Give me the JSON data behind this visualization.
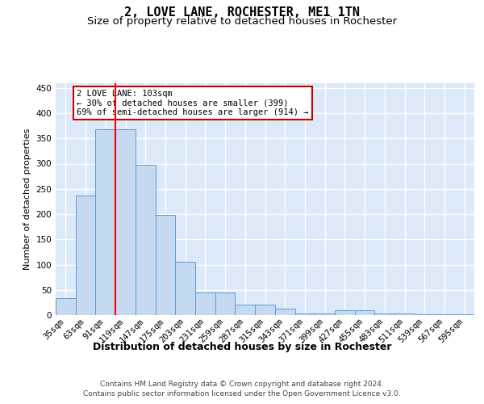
{
  "title": "2, LOVE LANE, ROCHESTER, ME1 1TN",
  "subtitle": "Size of property relative to detached houses in Rochester",
  "xlabel": "Distribution of detached houses by size in Rochester",
  "ylabel": "Number of detached properties",
  "bar_labels": [
    "35sqm",
    "63sqm",
    "91sqm",
    "119sqm",
    "147sqm",
    "175sqm",
    "203sqm",
    "231sqm",
    "259sqm",
    "287sqm",
    "315sqm",
    "343sqm",
    "371sqm",
    "399sqm",
    "427sqm",
    "455sqm",
    "483sqm",
    "511sqm",
    "539sqm",
    "567sqm",
    "595sqm"
  ],
  "bar_values": [
    33,
    237,
    368,
    368,
    297,
    199,
    105,
    45,
    45,
    21,
    21,
    13,
    4,
    4,
    9,
    9,
    4,
    4,
    2,
    2,
    2
  ],
  "bar_color": "#c5d9f0",
  "bar_edge_color": "#5b9bd5",
  "background_color": "#dce9f8",
  "grid_color": "#ffffff",
  "red_line_x": 2.5,
  "annotation_text": "2 LOVE LANE: 103sqm\n← 30% of detached houses are smaller (399)\n69% of semi-detached houses are larger (914) →",
  "annotation_box_facecolor": "#ffffff",
  "annotation_box_edgecolor": "#cc0000",
  "footer_line1": "Contains HM Land Registry data © Crown copyright and database right 2024.",
  "footer_line2": "Contains public sector information licensed under the Open Government Licence v3.0.",
  "ylim_max": 460,
  "yticks": [
    0,
    50,
    100,
    150,
    200,
    250,
    300,
    350,
    400,
    450
  ],
  "title_fontsize": 11,
  "subtitle_fontsize": 9.5,
  "xlabel_fontsize": 9,
  "ylabel_fontsize": 8,
  "tick_fontsize": 7.5,
  "annot_fontsize": 7.5,
  "footer_fontsize": 6.5
}
